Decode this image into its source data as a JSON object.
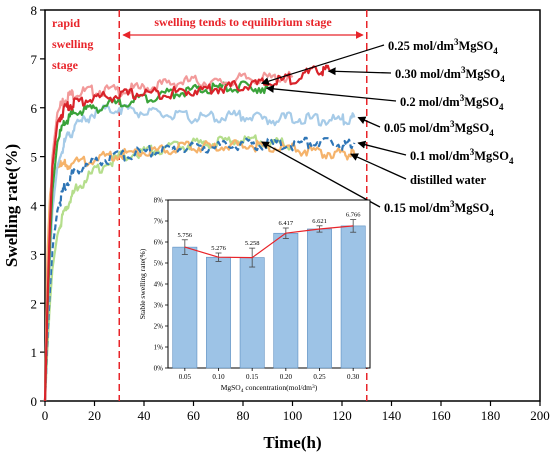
{
  "chart_data": [
    {
      "type": "line",
      "xlabel": "Time(h)",
      "ylabel": "Swelling rate(%)",
      "xlim": [
        0,
        200
      ],
      "ylim": [
        0,
        8
      ],
      "xticks": [
        0,
        20,
        40,
        60,
        80,
        100,
        120,
        140,
        160,
        180,
        200
      ],
      "yticks": [
        0,
        1,
        2,
        3,
        4,
        5,
        6,
        7,
        8
      ],
      "stage_boundaries": [
        30,
        130
      ],
      "stage_labels": {
        "rapid_line1": "rapid",
        "rapid_line2": "swelling",
        "rapid_line3": "stage",
        "equilibrium": "swelling tends to equilibrium stage"
      },
      "series": [
        {
          "name": "0.25 mol/dm³MgSO₄",
          "label_main": "0.25 mol/dm",
          "sup": "3",
          "salt": "MgSO",
          "sub": "4",
          "color": "#f29a9a",
          "x": [
            0,
            1,
            2,
            3,
            5,
            8,
            12,
            20,
            30,
            40,
            50,
            60,
            70,
            80,
            90,
            100
          ],
          "y": [
            0,
            2.2,
            3.8,
            5.0,
            5.9,
            6.2,
            6.3,
            6.35,
            6.35,
            6.4,
            6.5,
            6.55,
            6.5,
            6.6,
            6.6,
            6.62
          ],
          "arrow_target": [
            86,
            6.5
          ]
        },
        {
          "name": "0.30 mol/dm³MgSO₄",
          "label_main": "0.30 mol/dm",
          "sup": "3",
          "salt": "MgSO",
          "sub": "4",
          "color": "#d9232a",
          "x": [
            0,
            1,
            2,
            3,
            5,
            8,
            12,
            20,
            30,
            40,
            50,
            60,
            70,
            80,
            90,
            100,
            110,
            115
          ],
          "y": [
            0,
            2.0,
            3.6,
            4.8,
            5.7,
            6.0,
            6.1,
            6.2,
            6.25,
            6.3,
            6.3,
            6.35,
            6.4,
            6.45,
            6.5,
            6.6,
            6.75,
            6.77
          ],
          "arrow_target": [
            113,
            6.75
          ]
        },
        {
          "name": "0.2 mol/dm³MgSO₄",
          "label_main": "0.2 mol/dm",
          "sup": "3",
          "salt": "MgSO",
          "sub": "4",
          "color": "#3aa33a",
          "x": [
            0,
            1,
            2,
            3,
            5,
            8,
            12,
            20,
            30,
            40,
            50,
            60,
            70,
            80,
            90
          ],
          "y": [
            0,
            1.8,
            3.2,
            4.3,
            5.3,
            5.7,
            5.9,
            6.0,
            6.1,
            6.2,
            6.3,
            6.35,
            6.4,
            6.42,
            6.42
          ],
          "arrow_target": [
            88,
            6.4
          ]
        },
        {
          "name": "0.05 mol/dm³MgSO₄",
          "label_main": "0.05 mol/dm",
          "sup": "3",
          "salt": "MgSO",
          "sub": "4",
          "color": "#a6cbe8",
          "x": [
            0,
            1,
            2,
            3,
            5,
            8,
            12,
            20,
            30,
            40,
            50,
            60,
            70,
            80,
            90,
            100,
            110,
            120,
            125
          ],
          "y": [
            0,
            1.6,
            2.9,
            3.9,
            4.8,
            5.3,
            5.6,
            5.9,
            6.0,
            5.9,
            5.85,
            5.8,
            5.8,
            5.85,
            5.75,
            5.8,
            5.75,
            5.75,
            5.8
          ],
          "arrow_target": [
            125,
            5.8
          ]
        },
        {
          "name": "0.1 mol/dm³MgSO₄",
          "label_main": "0.1 mol/dm",
          "sup": "3",
          "salt": "MgSO",
          "sub": "4",
          "color": "#2e75b6",
          "x": [
            0,
            1,
            2,
            3,
            5,
            8,
            12,
            20,
            30,
            40,
            50,
            60,
            70,
            80,
            90,
            100,
            110,
            120,
            125
          ],
          "y": [
            0,
            1.3,
            2.3,
            3.1,
            3.9,
            4.4,
            4.7,
            4.9,
            5.0,
            5.1,
            5.15,
            5.2,
            5.2,
            5.25,
            5.25,
            5.25,
            5.3,
            5.25,
            5.28
          ],
          "dashed": true,
          "arrow_target": [
            125,
            5.28
          ]
        },
        {
          "name": "distilled water",
          "label_main": "distilled water",
          "sup": "",
          "salt": "",
          "sub": "",
          "color": "#f5b36b",
          "x": [
            0,
            1,
            2,
            3,
            4,
            6,
            10,
            20,
            30,
            40,
            50,
            60,
            70,
            80,
            90,
            100,
            110,
            120,
            125
          ],
          "y": [
            0,
            3.0,
            4.2,
            4.6,
            4.75,
            4.8,
            4.85,
            4.95,
            5.05,
            5.1,
            5.15,
            5.2,
            5.2,
            5.25,
            5.2,
            5.15,
            5.1,
            5.05,
            5.05
          ],
          "arrow_target": [
            122,
            5.05
          ]
        },
        {
          "name": "0.15 mol/dm³MgSO₄",
          "label_main": "0.15 mol/dm",
          "sup": "3",
          "salt": "MgSO",
          "sub": "4",
          "color": "#b5de8c",
          "x": [
            0,
            1,
            2,
            3,
            5,
            8,
            12,
            20,
            30,
            40,
            50,
            60,
            70,
            80,
            90,
            100
          ],
          "y": [
            0,
            1.1,
            2.0,
            2.7,
            3.4,
            3.9,
            4.3,
            4.7,
            5.0,
            5.1,
            5.2,
            5.25,
            5.3,
            5.35,
            5.3,
            5.25
          ],
          "arrow_target": [
            86,
            5.3
          ]
        }
      ]
    },
    {
      "type": "bar",
      "xlabel_main": "MgSO",
      "xlabel_sub": "4",
      "xlabel_rest": " concentration(mol/dm",
      "xlabel_sup": "3",
      "xlabel_end": ")",
      "ylabel": "Stable swelling rate(%)",
      "categories": [
        "0.05",
        "0.10",
        "0.15",
        "0.20",
        "0.25",
        "0.30"
      ],
      "values": [
        5.756,
        5.276,
        5.258,
        6.417,
        6.621,
        6.766
      ],
      "value_labels": [
        "5.756",
        "5.276",
        "5.258",
        "6.417",
        "6.621",
        "6.766"
      ],
      "errors": [
        0.35,
        0.2,
        0.45,
        0.25,
        0.15,
        0.3
      ],
      "ylim": [
        0,
        8
      ],
      "yticks": [
        0,
        1,
        2,
        3,
        4,
        5,
        6,
        7,
        8
      ],
      "ytick_labels": [
        "0%",
        "1%",
        "2%",
        "3%",
        "4%",
        "5%",
        "6%",
        "7%",
        "8%"
      ],
      "bar_color": "#9dc3e6",
      "line_color": "#e8242a"
    }
  ]
}
